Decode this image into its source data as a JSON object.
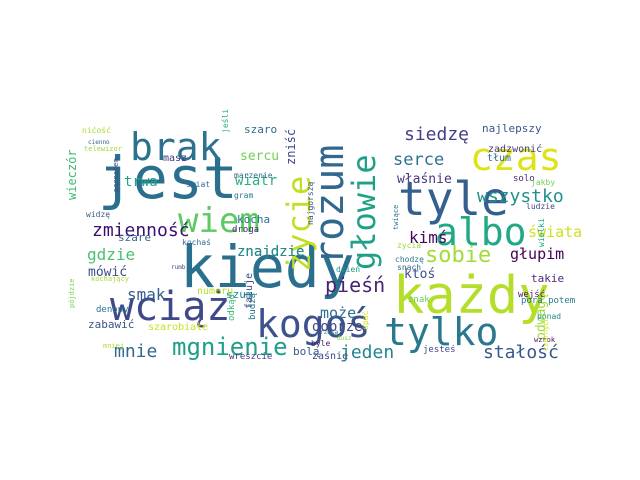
{
  "word_cloud": {
    "background": "#ffffff",
    "words": [
      {
        "text": "jest",
        "color": "#2a6f8e"
      },
      {
        "text": "kiedy",
        "color": "#2a6f8e"
      },
      {
        "text": "każdy",
        "color": "#b5de2b"
      },
      {
        "text": "wciąż",
        "color": "#3e4989"
      },
      {
        "text": "tyle",
        "color": "#35608d"
      },
      {
        "text": "kogoś",
        "color": "#3b528b"
      },
      {
        "text": "tylko",
        "color": "#2a788e"
      },
      {
        "text": "rozum",
        "color": "#31688e"
      },
      {
        "text": "brak",
        "color": "#2c728e"
      },
      {
        "text": "czas",
        "color": "#dde318"
      },
      {
        "text": "albo",
        "color": "#22a884"
      },
      {
        "text": "wiem",
        "color": "#5ec962"
      },
      {
        "text": "głowie",
        "color": "#1fa188"
      },
      {
        "text": "życie",
        "color": "#c2df23"
      },
      {
        "text": "mgnienie",
        "color": "#1f9e89"
      },
      {
        "text": "sobie",
        "color": "#a5db36"
      },
      {
        "text": "pieśń",
        "color": "#482475"
      },
      {
        "text": "wszystko",
        "color": "#21918c"
      },
      {
        "text": "siedzę",
        "color": "#433e85"
      },
      {
        "text": "zmienność",
        "color": "#3b0f70"
      },
      {
        "text": "stałość",
        "color": "#38588c"
      },
      {
        "text": "mnie",
        "color": "#31688e"
      },
      {
        "text": "jeden",
        "color": "#25858e"
      },
      {
        "text": "serce",
        "color": "#2c728e"
      },
      {
        "text": "gdzie",
        "color": "#4ac16d"
      },
      {
        "text": "smak",
        "color": "#355f8d"
      },
      {
        "text": "kimś",
        "color": "#46085c"
      },
      {
        "text": "świata",
        "color": "#d0e11c"
      },
      {
        "text": "może",
        "color": "#2d708e"
      },
      {
        "text": "dobrze",
        "color": "#3f4788"
      },
      {
        "text": "głupim",
        "color": "#440154"
      },
      {
        "text": "trwa",
        "color": "#21a685"
      },
      {
        "text": "wiatr",
        "color": "#29af7f"
      },
      {
        "text": "sercu",
        "color": "#70cf57"
      },
      {
        "text": "znajdzie",
        "color": "#238a8d"
      },
      {
        "text": "mówić",
        "color": "#3f4a8a"
      },
      {
        "text": "właśnie",
        "color": "#443983"
      },
      {
        "text": "wieczór",
        "color": "#3dbc74"
      },
      {
        "text": "zniść",
        "color": "#404588"
      },
      {
        "text": "odwagę",
        "color": "#a0da39"
      },
      {
        "text": "ktoś",
        "color": "#3c4f8a"
      },
      {
        "text": "najlepszy",
        "color": "#39558c"
      },
      {
        "text": "zadzwonić",
        "color": "#443a83"
      },
      {
        "text": "tłum",
        "color": "#2f6c8e"
      },
      {
        "text": "takie",
        "color": "#472c7a"
      },
      {
        "text": "szum",
        "color": "#23898e"
      },
      {
        "text": "znajdzie",
        "color": "#238a8d"
      },
      {
        "text": "zabawić",
        "color": "#3b528b"
      },
      {
        "text": "szaro",
        "color": "#2f6b8e"
      },
      {
        "text": "kocha",
        "color": "#2d718e"
      },
      {
        "text": "szare",
        "color": "#34618d"
      },
      {
        "text": "masz",
        "color": "#453781"
      },
      {
        "text": "pora potem",
        "color": "#297b8e"
      },
      {
        "text": "numeru",
        "color": "#b8de29"
      },
      {
        "text": "szarobiałe",
        "color": "#cae11f"
      },
      {
        "text": "bolą",
        "color": "#38598c"
      },
      {
        "text": "wreszcie",
        "color": "#453882"
      },
      {
        "text": "zaśnie",
        "color": "#3e4a89"
      },
      {
        "text": "jesteś",
        "color": "#404688"
      },
      {
        "text": "odkąd",
        "color": "#3aba76"
      },
      {
        "text": "budzą",
        "color": "#2a768e"
      },
      {
        "text": "faluje",
        "color": "#3e4989"
      },
      {
        "text": "wejść",
        "color": "#481a6c"
      },
      {
        "text": "znak",
        "color": "#67cc5c"
      },
      {
        "text": "spać",
        "color": "#d8e219"
      },
      {
        "text": "denony",
        "color": "#2b758e"
      },
      {
        "text": "solo",
        "color": "#482878"
      },
      {
        "text": "gram",
        "color": "#2b748e"
      },
      {
        "text": "droga",
        "color": "#46307e"
      },
      {
        "text": "najgorszą",
        "color": "#3b528b"
      },
      {
        "text": "dzień",
        "color": "#1f968b"
      },
      {
        "text": "zycia",
        "color": "#9bd93c"
      },
      {
        "text": "chodzę",
        "color": "#2a768e"
      },
      {
        "text": "snach",
        "color": "#33638d"
      },
      {
        "text": "marzenie",
        "color": "#31688e"
      },
      {
        "text": "kochaś",
        "color": "#2f6b8e"
      },
      {
        "text": "poznałem",
        "color": "#3c508b"
      },
      {
        "text": "widzę",
        "color": "#365d8d"
      },
      {
        "text": "nićość",
        "color": "#addc30"
      },
      {
        "text": "świat",
        "color": "#31678e"
      },
      {
        "text": "jeśli",
        "color": "#26ad81"
      },
      {
        "text": "telewizor",
        "color": "#98d83e"
      },
      {
        "text": "ludzie",
        "color": "#414487"
      },
      {
        "text": "wielki",
        "color": "#22a785"
      },
      {
        "text": "ponad",
        "color": "#238a8d"
      },
      {
        "text": "jakby",
        "color": "#75d054"
      },
      {
        "text": "byle",
        "color": "#481769"
      },
      {
        "text": "wzrok",
        "color": "#471164"
      },
      {
        "text": "kochający",
        "color": "#a8db34"
      },
      {
        "text": "pójdzie",
        "color": "#7ad151"
      },
      {
        "text": "czarnych",
        "color": "#d2e21b"
      },
      {
        "text": "twiące",
        "color": "#2c738e"
      },
      {
        "text": "mniej",
        "color": "#b0dd2f"
      },
      {
        "text": "rumb",
        "color": "#3e4989"
      },
      {
        "text": "dusz",
        "color": "#8bd646"
      },
      {
        "text": "rzeka",
        "color": "#2a778e"
      },
      {
        "text": "cienno",
        "color": "#34608d"
      }
    ]
  }
}
